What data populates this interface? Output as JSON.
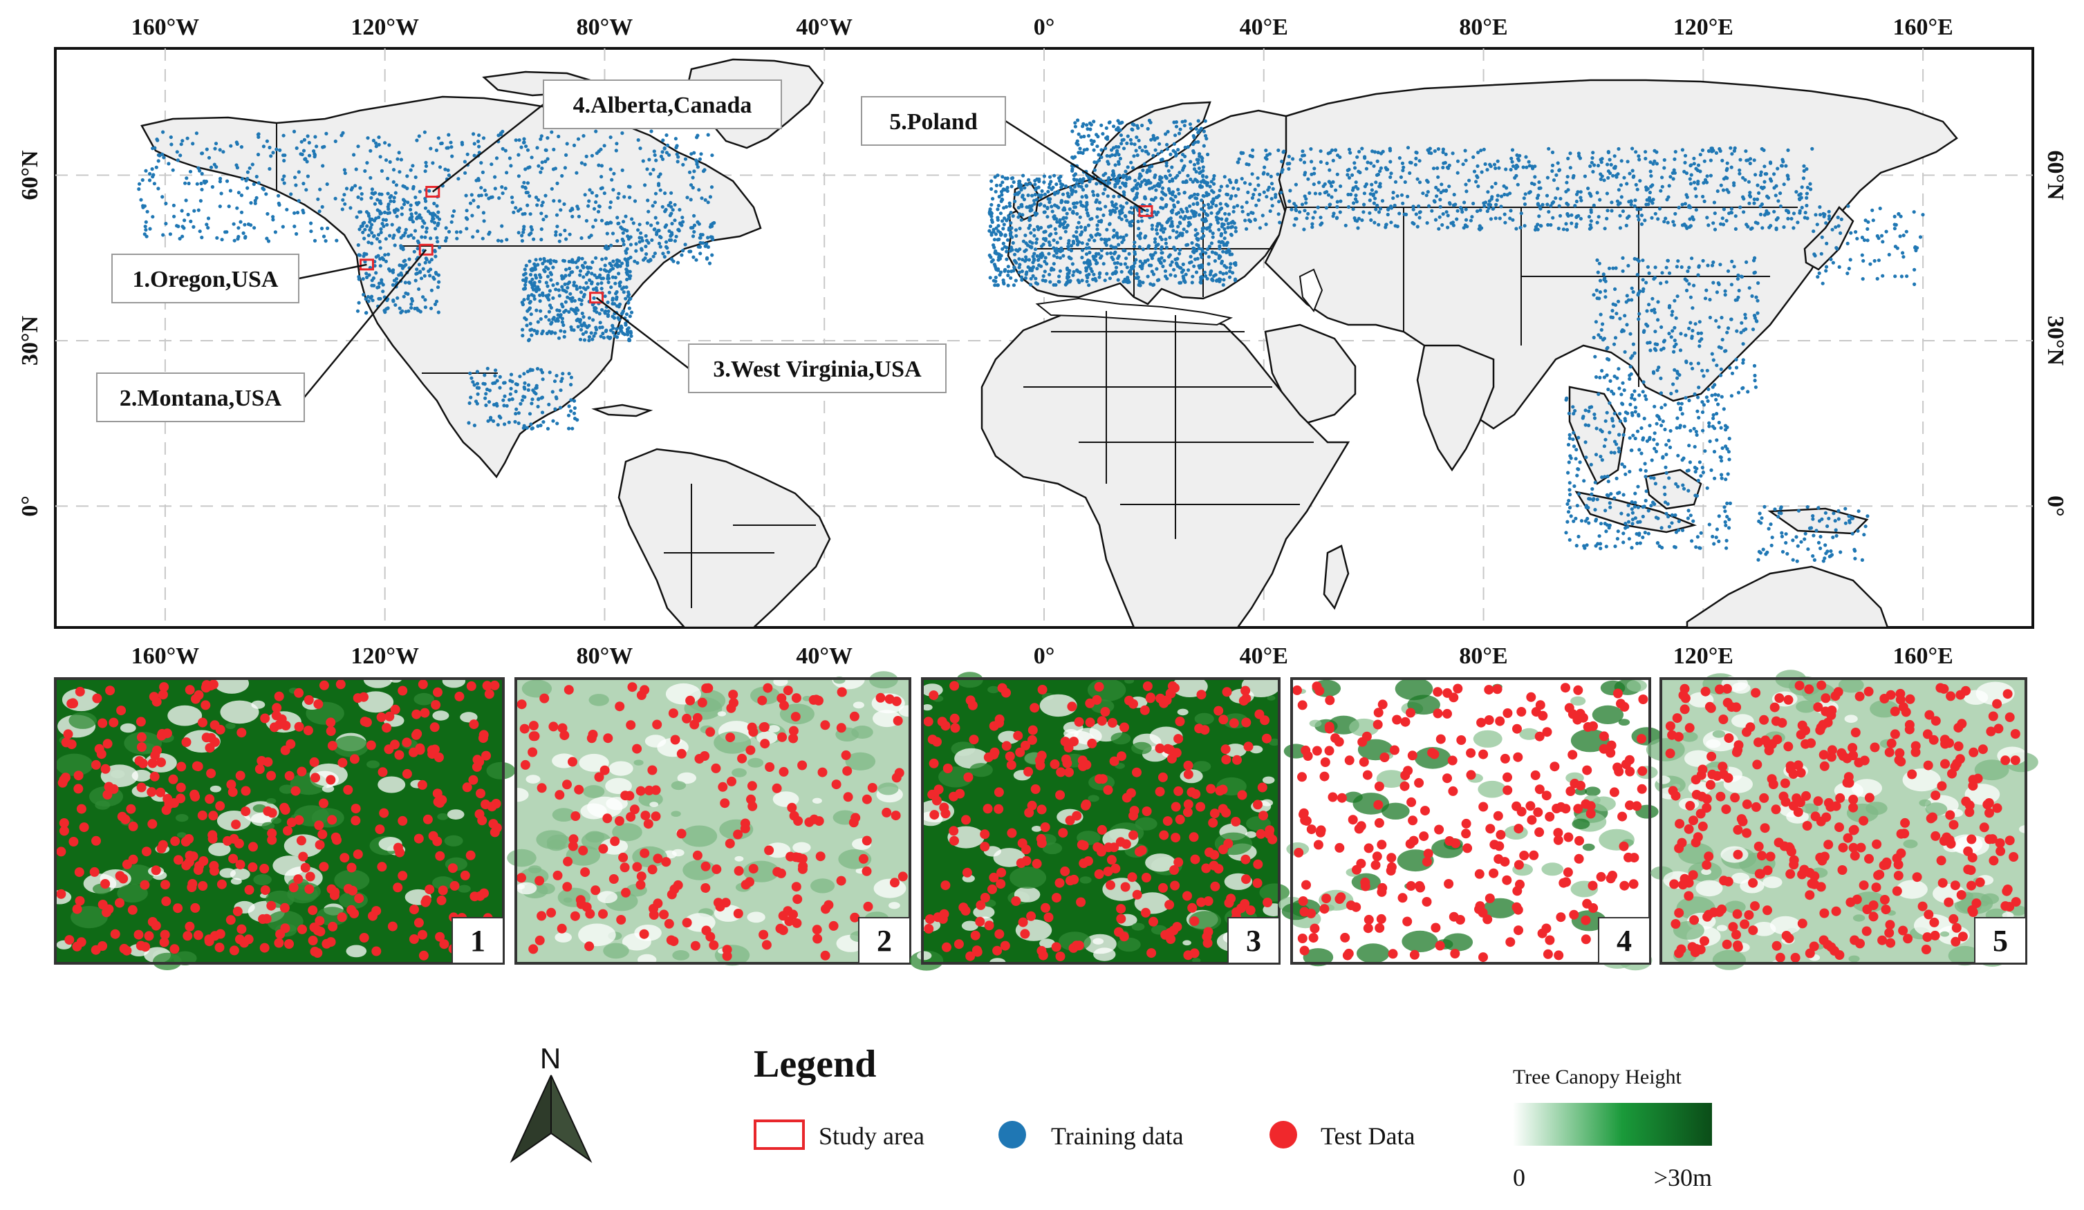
{
  "map": {
    "lon_ticks": [
      "160°W",
      "120°W",
      "80°W",
      "40°W",
      "0°",
      "40°E",
      "80°E",
      "120°E",
      "160°E"
    ],
    "lat_ticks": [
      "60°N",
      "30°N",
      "0°"
    ],
    "callouts": [
      {
        "label": "1.Oregon,USA",
        "lon": -123.3,
        "lat": 43.8
      },
      {
        "label": "2.Montana,USA",
        "lon": -112.5,
        "lat": 46.5
      },
      {
        "label": "3.West Virginia,USA",
        "lon": -81.5,
        "lat": 37.8
      },
      {
        "label": "4.Alberta,Canada",
        "lon": -111.3,
        "lat": 57.0
      },
      {
        "label": "5.Poland",
        "lon": 18.5,
        "lat": 53.5
      }
    ]
  },
  "panels": [
    {
      "number": "1",
      "canopy": "dense"
    },
    {
      "number": "2",
      "canopy": "light"
    },
    {
      "number": "3",
      "canopy": "dense"
    },
    {
      "number": "4",
      "canopy": "sparse"
    },
    {
      "number": "5",
      "canopy": "light"
    }
  ],
  "north_arrow": {
    "label": "N"
  },
  "legend": {
    "title": "Legend",
    "study_area": "Study area",
    "training": "Training data",
    "test": "Test Data",
    "colors": {
      "study_area": "#e8262b",
      "training": "#1f77b4",
      "test": "#f0282c"
    }
  },
  "colorbar": {
    "title": "Tree Canopy Height",
    "min_label": "0",
    "max_label": ">30m",
    "colors": [
      "#ffffff",
      "#1a9a3a",
      "#0b4d18"
    ]
  },
  "colors": {
    "land": "#efefef",
    "grid": "#c8c8c8",
    "dense_green": "#0f6a16",
    "light_green": "#a9cfae"
  }
}
